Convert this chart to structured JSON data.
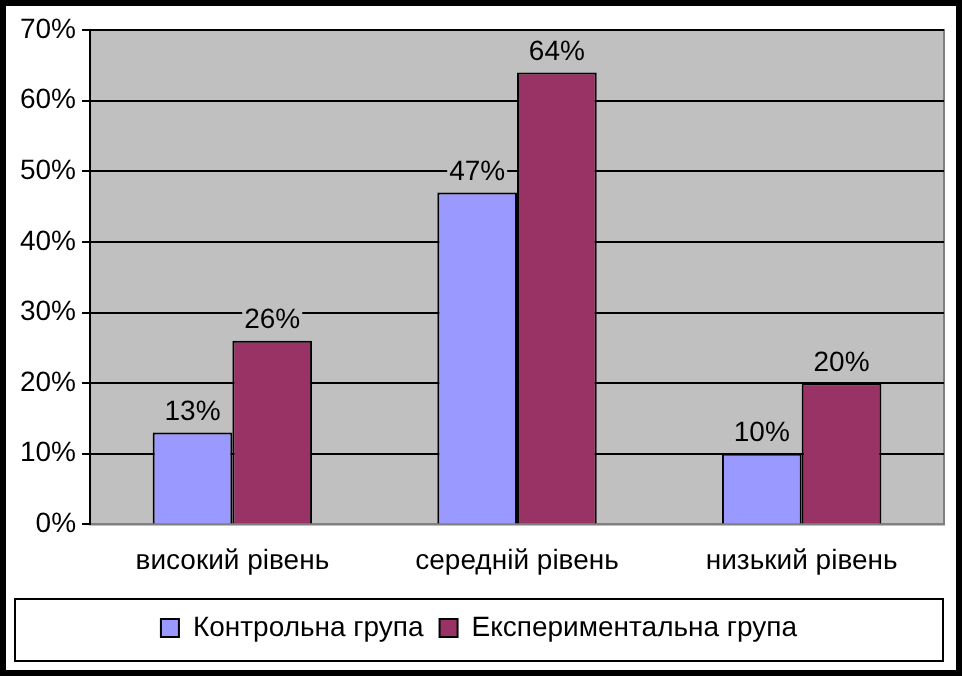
{
  "chart_data": {
    "type": "bar",
    "categories": [
      "високий рівень",
      "середній рівень",
      "низький рівень"
    ],
    "series": [
      {
        "name": "Контрольна група",
        "color": "#9999ff",
        "values": [
          13,
          47,
          10
        ],
        "value_labels": [
          "13%",
          "47%",
          "10%"
        ]
      },
      {
        "name": "Експериментальна група",
        "color": "#993366",
        "values": [
          26,
          64,
          20
        ],
        "value_labels": [
          "26%",
          "64%",
          "20%"
        ]
      }
    ],
    "ylim": [
      0,
      70
    ],
    "yticks": [
      {
        "value": 0,
        "label": "0%"
      },
      {
        "value": 10,
        "label": "10%"
      },
      {
        "value": 20,
        "label": "20%"
      },
      {
        "value": 30,
        "label": "30%"
      },
      {
        "value": 40,
        "label": "40%"
      },
      {
        "value": 50,
        "label": "50%"
      },
      {
        "value": 60,
        "label": "60%"
      },
      {
        "value": 70,
        "label": "70%"
      }
    ],
    "grid": "y",
    "legend": "bottom"
  }
}
